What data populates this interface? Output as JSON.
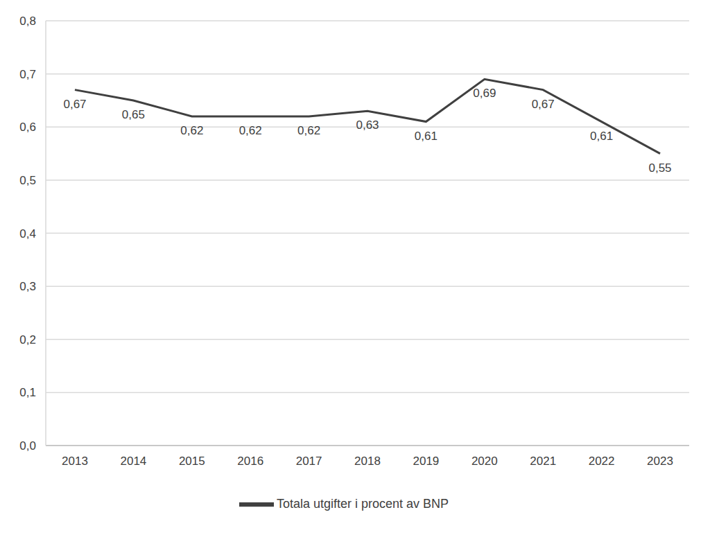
{
  "chart_data": {
    "type": "line",
    "categories": [
      "2013",
      "2014",
      "2015",
      "2016",
      "2017",
      "2018",
      "2019",
      "2020",
      "2021",
      "2022",
      "2023"
    ],
    "series": [
      {
        "name": "Totala utgifter i procent av BNP",
        "color": "#404040",
        "values": [
          0.67,
          0.65,
          0.62,
          0.62,
          0.62,
          0.63,
          0.61,
          0.69,
          0.67,
          0.61,
          0.55
        ],
        "value_labels": [
          "0,67",
          "0,65",
          "0,62",
          "0,62",
          "0,62",
          "0,63",
          "0,61",
          "0,69",
          "0,67",
          "0,61",
          "0,55"
        ]
      }
    ],
    "ylim": [
      0,
      0.8
    ],
    "yticks": [
      {
        "value": 0,
        "label": "0,0"
      },
      {
        "value": 0.1,
        "label": "0,1"
      },
      {
        "value": 0.2,
        "label": "0,2"
      },
      {
        "value": 0.3,
        "label": "0,3"
      },
      {
        "value": 0.4,
        "label": "0,4"
      },
      {
        "value": 0.5,
        "label": "0,5"
      },
      {
        "value": 0.6,
        "label": "0,6"
      },
      {
        "value": 0.7,
        "label": "0,7"
      },
      {
        "value": 0.8,
        "label": "0,8"
      }
    ],
    "grid": true,
    "legend": "bottom",
    "data_labels": true
  }
}
